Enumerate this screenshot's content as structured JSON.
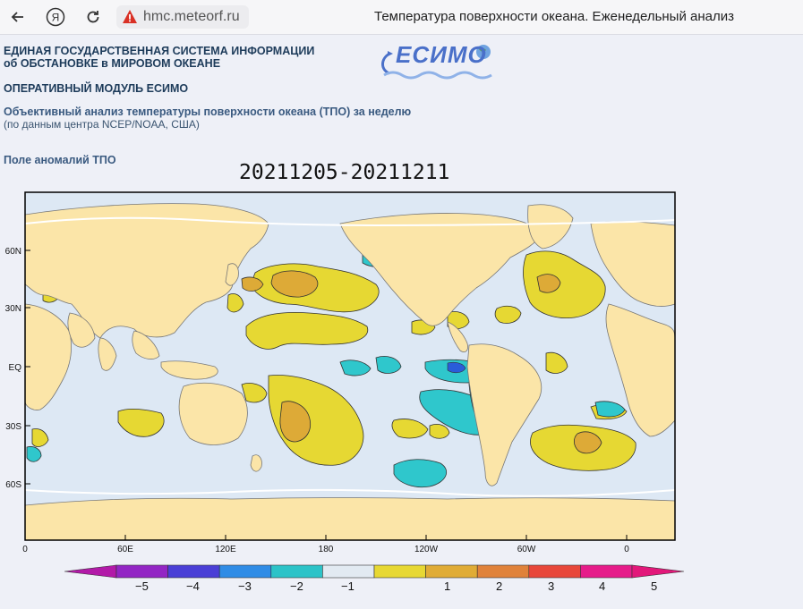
{
  "browser": {
    "host": "hmc.meteorf.ru",
    "tab_title": "Температура поверхности океана. Еженедельный анализ"
  },
  "header": {
    "line1": "ЕДИНАЯ ГОСУДАРСТВЕННАЯ СИСТЕМА ИНФОРМАЦИИ",
    "line2": "об ОБСТАНОВКЕ в МИРОВОМ ОКЕАНЕ",
    "module": "ОПЕРАТИВНЫЙ МОДУЛЬ ЕСИМО",
    "analysis_title": "Объективный анализ температуры поверхности океана (ТПО) за неделю",
    "analysis_source": "(по данным центра NCEP/NOAA, США)",
    "section": "Поле аномалий ТПО",
    "logo_text": "ЕСИМО"
  },
  "map": {
    "period": "20211205-20211211",
    "lat_ticks": [
      "60N",
      "30N",
      "EQ",
      "30S",
      "60S"
    ],
    "lon_ticks": [
      "0",
      "60E",
      "120E",
      "180",
      "120W",
      "60W",
      "0"
    ],
    "colors": {
      "land": "#fbe5a8",
      "ocean": "#dde8f4",
      "anom_p1": "#e6d833",
      "anom_p2": "#ddaa37",
      "anom_p3": "#e08a3a",
      "anom_m1": "#2fc7cc",
      "anom_m2": "#2a5cd9"
    }
  },
  "colorbar": {
    "labels": [
      "-5",
      "-4",
      "-3",
      "-2",
      "-1",
      "1",
      "2",
      "3",
      "4",
      "5"
    ],
    "colors": [
      "#9326c4",
      "#4a3fd6",
      "#2f8ce6",
      "#2cc3c8",
      "#e2eaf2",
      "#e7d833",
      "#e0ac36",
      "#e0823a",
      "#e8473a",
      "#e61c8a"
    ]
  }
}
